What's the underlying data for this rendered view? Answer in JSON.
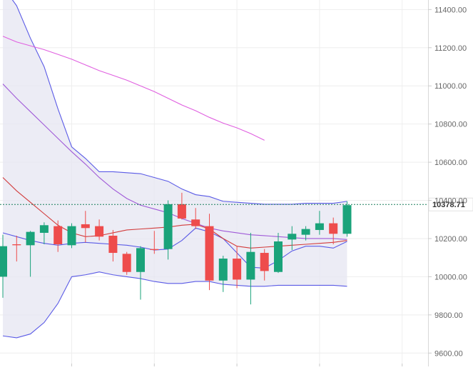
{
  "chart_data": {
    "type": "candlestick",
    "y_axis": {
      "position": "right",
      "ylim": [
        9530,
        11450
      ],
      "ticks": [
        9600,
        9800,
        10000,
        10200,
        10400,
        10600,
        10800,
        11000,
        11200,
        11400
      ],
      "tick_labels": [
        "9600.00",
        "9800.00",
        "10000.00",
        "10200.00",
        "10400.00",
        "10600.00",
        "10800.00",
        "11000.00",
        "11200.00",
        "11400.00"
      ]
    },
    "x_axis": {
      "ticks_at_candle_index": [
        5,
        11,
        17,
        23,
        29
      ],
      "tick_labels": []
    },
    "grid": true,
    "current_price": {
      "value": 10378.71,
      "label": "10378.71",
      "color": "#1a7f5c"
    },
    "colors": {
      "up": "#1aa37a",
      "down": "#ee4c4c",
      "bollinger_line": "#5a5ae6",
      "bollinger_fill": "#e5e5f2",
      "ma_fast": "#d23c3c",
      "ma_mid": "#a05ad8",
      "ma_slow": "#e060e0",
      "grid": "#eeeeee",
      "axis_text": "#666666"
    },
    "candles": [
      {
        "o": 10000,
        "h": 10220,
        "l": 9890,
        "c": 10160
      },
      {
        "o": 10170,
        "h": 10215,
        "l": 10080,
        "c": 10165
      },
      {
        "o": 10165,
        "h": 10240,
        "l": 10000,
        "c": 10235
      },
      {
        "o": 10230,
        "h": 10285,
        "l": 10170,
        "c": 10270
      },
      {
        "o": 10265,
        "h": 10295,
        "l": 10130,
        "c": 10170
      },
      {
        "o": 10165,
        "h": 10280,
        "l": 10150,
        "c": 10265
      },
      {
        "o": 10275,
        "h": 10345,
        "l": 10180,
        "c": 10255
      },
      {
        "o": 10265,
        "h": 10300,
        "l": 10190,
        "c": 10210
      },
      {
        "o": 10215,
        "h": 10245,
        "l": 10080,
        "c": 10125
      },
      {
        "o": 10120,
        "h": 10130,
        "l": 10010,
        "c": 10025
      },
      {
        "o": 10025,
        "h": 10160,
        "l": 9880,
        "c": 10150
      },
      {
        "o": 10145,
        "h": 10240,
        "l": 10120,
        "c": 10140
      },
      {
        "o": 10145,
        "h": 10400,
        "l": 10090,
        "c": 10380
      },
      {
        "o": 10380,
        "h": 10440,
        "l": 10300,
        "c": 10305
      },
      {
        "o": 10300,
        "h": 10360,
        "l": 10250,
        "c": 10265
      },
      {
        "o": 10265,
        "h": 10330,
        "l": 9930,
        "c": 9980
      },
      {
        "o": 9980,
        "h": 10110,
        "l": 9920,
        "c": 10095
      },
      {
        "o": 10095,
        "h": 10160,
        "l": 9940,
        "c": 9985
      },
      {
        "o": 9985,
        "h": 10230,
        "l": 9855,
        "c": 10130
      },
      {
        "o": 10125,
        "h": 10145,
        "l": 9980,
        "c": 10030
      },
      {
        "o": 10025,
        "h": 10230,
        "l": 10020,
        "c": 10185
      },
      {
        "o": 10195,
        "h": 10265,
        "l": 10140,
        "c": 10225
      },
      {
        "o": 10220,
        "h": 10265,
        "l": 10190,
        "c": 10250
      },
      {
        "o": 10245,
        "h": 10345,
        "l": 10220,
        "c": 10280
      },
      {
        "o": 10280,
        "h": 10310,
        "l": 10170,
        "c": 10225
      },
      {
        "o": 10225,
        "h": 10395,
        "l": 10210,
        "c": 10375
      }
    ],
    "bollinger_upper": [
      11520,
      11420,
      11250,
      11100,
      10880,
      10680,
      10620,
      10550,
      10550,
      10545,
      10540,
      10520,
      10500,
      10460,
      10430,
      10420,
      10395,
      10390,
      10385,
      10380,
      10380,
      10380,
      10385,
      10385,
      10385,
      10395
    ],
    "bollinger_lower": [
      9690,
      9680,
      9700,
      9760,
      9860,
      10000,
      10010,
      10025,
      10010,
      10000,
      9990,
      9975,
      9965,
      9965,
      9975,
      9975,
      9960,
      9955,
      9950,
      9950,
      9955,
      9955,
      9955,
      9955,
      9955,
      9950
    ],
    "bollinger_mid": [
      10230,
      10210,
      10190,
      10175,
      10165,
      10175,
      10180,
      10175,
      10170,
      10165,
      10155,
      10140,
      10145,
      10190,
      10255,
      10235,
      10200,
      10125,
      10050,
      10045,
      10085,
      10135,
      10160,
      10160,
      10150,
      10185
    ],
    "ma_fast": [
      10520,
      10450,
      10390,
      10330,
      10270,
      10230,
      10210,
      10215,
      10230,
      10245,
      10250,
      10255,
      10260,
      10270,
      10275,
      10250,
      10200,
      10160,
      10150,
      10155,
      10160,
      10165,
      10170,
      10175,
      10180,
      10190
    ],
    "ma_mid": [
      11010,
      10935,
      10865,
      10795,
      10725,
      10655,
      10590,
      10520,
      10460,
      10410,
      10375,
      10355,
      10335,
      10305,
      10280,
      10255,
      10240,
      10230,
      10220,
      10215,
      10210,
      10205,
      10200,
      10200,
      10200,
      10195
    ],
    "ma_slow": [
      11260,
      11230,
      11210,
      11190,
      11165,
      11140,
      11110,
      11080,
      11055,
      11030,
      11000,
      10970,
      10935,
      10900,
      10870,
      10835,
      10805,
      10780,
      10750,
      10715
    ]
  }
}
